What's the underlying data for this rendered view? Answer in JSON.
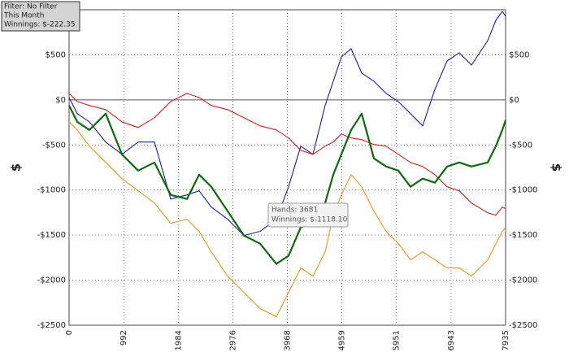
{
  "chart_data": {
    "type": "line",
    "ylabel": "$",
    "info_box": [
      "Filter: No Filter",
      "This Month",
      "Winnings: $-222.35"
    ],
    "tooltip": [
      "Hands: 3681",
      "Winnings: $-1118.10"
    ],
    "x": [
      0,
      148,
      369,
      665,
      961,
      1256,
      1552,
      1847,
      2143,
      2364,
      2586,
      2881,
      3177,
      3473,
      3768,
      3990,
      4211,
      4433,
      4655,
      4803,
      4950,
      5128,
      5320,
      5541,
      5763,
      5985,
      6206,
      6428,
      6650,
      6871,
      7093,
      7315,
      7610,
      7758,
      7876,
      7935
    ],
    "series": [
      {
        "color": "#1c1ca8",
        "values": [
          27,
          -153,
          -243,
          -468,
          -604,
          -468,
          -468,
          -1099,
          -1054,
          -1009,
          -1189,
          -1324,
          -1504,
          -1459,
          -1324,
          -964,
          -514,
          -604,
          -63,
          207,
          477,
          568,
          297,
          207,
          72,
          -18,
          -153,
          -288,
          117,
          432,
          523,
          387,
          658,
          883,
          982,
          927
        ]
      },
      {
        "color": "#cc2020",
        "values": [
          72,
          -18,
          -63,
          -108,
          -243,
          -306,
          -198,
          -18,
          72,
          27,
          -63,
          -108,
          -198,
          -288,
          -333,
          -423,
          -559,
          -604,
          -514,
          -468,
          -378,
          -423,
          -441,
          -495,
          -514,
          -604,
          -694,
          -739,
          -829,
          -964,
          -1009,
          -1144,
          -1252,
          -1279,
          -1189,
          -1207
        ]
      },
      {
        "color": "#0f6a0f",
        "values": [
          -63,
          -243,
          -333,
          -153,
          -604,
          -784,
          -694,
          -1054,
          -1099,
          -829,
          -964,
          -1234,
          -1504,
          -1595,
          -1820,
          -1730,
          -1414,
          -1369,
          -1144,
          -829,
          -604,
          -333,
          -153,
          -649,
          -739,
          -784,
          -964,
          -874,
          -919,
          -739,
          -694,
          -739,
          -694,
          -514,
          -333,
          -225
        ]
      },
      {
        "color": "#e8961c",
        "values": [
          -243,
          -333,
          -514,
          -694,
          -874,
          -1009,
          -1144,
          -1369,
          -1324,
          -1459,
          -1685,
          -1955,
          -2135,
          -2315,
          -2405,
          -2135,
          -1865,
          -1955,
          -1685,
          -1279,
          -1054,
          -829,
          -964,
          -1234,
          -1459,
          -1594,
          -1775,
          -1685,
          -1775,
          -1865,
          -1865,
          -1955,
          -1775,
          -1595,
          -1459,
          -1414
        ]
      }
    ],
    "xlim": [
      0,
      7935
    ],
    "xticks": [
      0,
      992,
      1984,
      2976,
      3968,
      4959,
      5951,
      6943,
      7935
    ],
    "ylim": [
      -2500,
      1000
    ],
    "yticks": [
      {
        "value": -2500,
        "label": "-$2500"
      },
      {
        "value": -2000,
        "label": "-$2000"
      },
      {
        "value": -1500,
        "label": "-$1500"
      },
      {
        "value": -1000,
        "label": "-$1000"
      },
      {
        "value": -500,
        "label": "-$500"
      },
      {
        "value": 0,
        "label": "$0"
      },
      {
        "value": 500,
        "label": "$500"
      }
    ],
    "grid": true
  }
}
